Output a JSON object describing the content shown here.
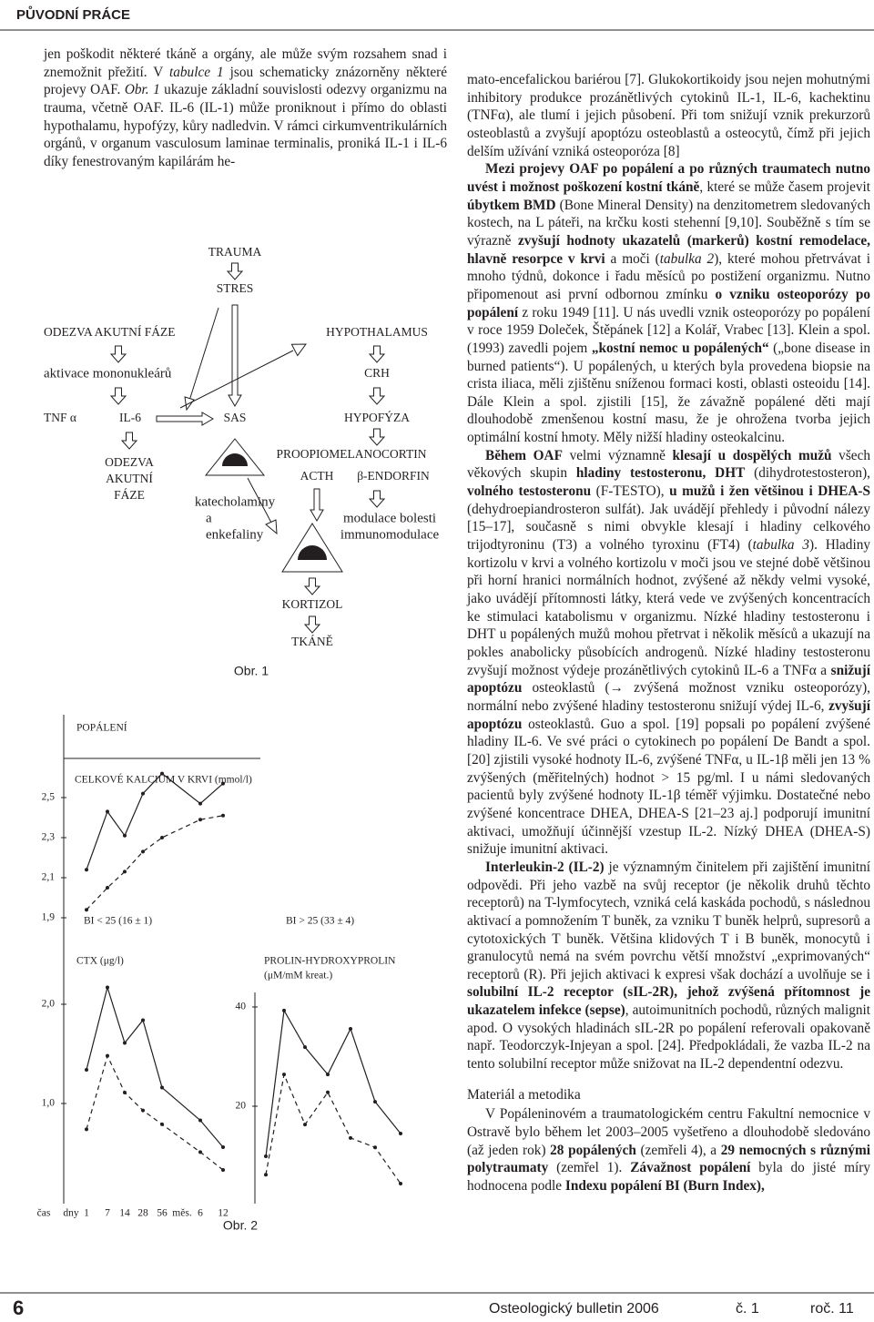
{
  "header": {
    "section": "PŮVODNÍ PRÁCE"
  },
  "left_column": {
    "paragraphs": [
      [
        "jen poškodit některé tkáně a orgány, ale může svým rozsahem snad i znemožnit přežití. V ",
        {
          "italic": "tabulce 1"
        },
        " jsou schematicky znázorněny některé projevy OAF. ",
        {
          "italic": "Obr. 1"
        },
        " ukazuje základní souvislosti odezvy organizmu na trauma, včetně OAF. IL-6 (IL-1) může proniknout i přímo do oblasti hypothalamu, hypofýzy, kůry nadledvin. V rámci cirkumventrikulárních orgánů, v organum vasculosum laminae terminalis, proniká IL-1 i IL-6 díky fenestrovaným kapilárám he-"
      ]
    ]
  },
  "figure1": {
    "caption": "Obr. 1",
    "labels": [
      "TRAUMA",
      "STRES",
      "ODEZVA AKUTNÍ FÁZE",
      "HYPOTHALAMUS",
      "aktivace mononukleárů",
      "CRH",
      "TNF α",
      "IL-6",
      "SAS",
      "HYPOFÝZA",
      "ODEZVA",
      "AKUTNÍ",
      "FÁZE",
      "PROOPIOMELANOCORTIN",
      "ACTH",
      "β-ENDORFIN",
      "katecholaminy",
      "a",
      "enkefaliny",
      "modulace bolesti",
      "immunomodulace",
      "KORTIZOL",
      "TKÁNĚ"
    ]
  },
  "figure2": {
    "caption": "Obr. 2",
    "top_label": "POPÁLENÍ",
    "x_axis": {
      "title": "čas",
      "day_unit": "dny",
      "month_unit": "měs.",
      "categories": [
        "1",
        "7",
        "14",
        "28",
        "56",
        "6",
        "12"
      ]
    },
    "panels": [
      {
        "type": "line",
        "title": "CELKOVÉ KALCIUM V KRVI (mmol/l)",
        "ylim": [
          1.9,
          2.62
        ],
        "yticks": [
          {
            "value": 2.5,
            "label": "2,5"
          },
          {
            "value": 2.3,
            "label": "2,3"
          },
          {
            "value": 2.1,
            "label": "2,1"
          },
          {
            "value": 1.9,
            "label": "1,9"
          }
        ],
        "series": [
          {
            "name": "BI < 25 (16 ± 1)",
            "color": "#231f20",
            "style": "solid",
            "values": [
              2.14,
              2.43,
              2.31,
              2.52,
              2.62,
              2.47,
              2.57
            ]
          },
          {
            "name": "BI > 25 (33 ± 4)",
            "color": "#231f20",
            "style": "dashed",
            "values": [
              1.94,
              2.05,
              2.13,
              2.23,
              2.3,
              2.39,
              2.41
            ]
          }
        ]
      },
      {
        "type": "line",
        "title": "CTX (μg/l)",
        "ylim": [
          0,
          2.4
        ],
        "yticks": [
          {
            "value": 2,
            "label": "2,0"
          },
          {
            "value": 1,
            "label": "1,0"
          }
        ],
        "series": [
          {
            "color": "#231f20",
            "style": "solid",
            "values": [
              1.34,
              2.17,
              1.61,
              1.84,
              1.16,
              0.83,
              0.56
            ]
          },
          {
            "color": "#231f20",
            "style": "dashed",
            "values": [
              0.74,
              1.48,
              1.11,
              0.93,
              0.79,
              0.51,
              0.33
            ]
          }
        ]
      },
      {
        "type": "line",
        "title": "PROLIN-HYDROXYPROLIN",
        "subtitle": "(μM/mM kreat.)",
        "ylim": [
          0,
          50
        ],
        "yticks": [
          40,
          20
        ],
        "series": [
          {
            "color": "#231f20",
            "style": "solid",
            "values": [
              9.9,
              39.3,
              31.9,
              26.4,
              35.6,
              20.9,
              14.5
            ]
          },
          {
            "color": "#231f20",
            "style": "dashed",
            "values": [
              6.2,
              26.4,
              16.3,
              22.8,
              13.6,
              11.7,
              4.4
            ]
          }
        ]
      }
    ]
  },
  "right_column": {
    "paragraphs": [
      [
        "mato-encefalickou bariérou [7]. Glukokortikoidy jsou nejen mohutnými inhibitory produkce prozánětlivých cytokinů IL-1, IL-6, kachektinu (TNFα), ale tlumí i jejich působení. Při tom snižují vznik prekurzorů osteoblastů a zvyšují apoptózu osteoblastů a osteocytů, čímž při jejich delším užívání vzniká osteoporóza [8]"
      ],
      [
        {
          "bold": "Mezi projevy OAF po popálení a po různých traumatech nutno uvést i možnost poškození kostní tkáně"
        },
        ", které se může časem projevit ",
        {
          "bold": "úbytkem BMD"
        },
        " (Bone Mineral Density) na denzitometrem sledovaných kostech, na L páteři, na krčku kosti stehenní [9,10]. Souběžně s tím se výrazně ",
        {
          "bold": "zvyšují hodnoty ukazatelů (markerů) kostní remodelace, hlavně resorpce v krvi"
        },
        " a moči (",
        {
          "italic": "tabulka 2"
        },
        "), které mohou přetrvávat i mnoho týdnů, dokonce i řadu měsíců po postižení organizmu. Nutno připomenout asi první odbornou zmínku ",
        {
          "bold": "o vzniku osteoporózy po popálení"
        },
        " z roku 1949 [11]. U nás uvedli vznik osteoporózy po popálení v roce 1959 Doleček, Štěpánek [12] a Kolář, Vrabec [13]. Klein a spol. (1993) zavedli pojem ",
        {
          "bold": "„kostní nemoc u popálených“"
        },
        " („bone disease in burned patients“). U popálených, u kterých byla provedena biopsie na crista iliaca, měli zjištěnu sníženou formaci kosti, oblasti osteoidu [14]. Dále Klein a spol. zjistili [15], že závažně popálené děti mají dlouhodobě zmenšenou kostní masu, že je ohrožena tvorba jejich optimální kostní hmoty. Měly nižší hladiny osteokalcinu."
      ],
      [
        {
          "bold": "Během OAF"
        },
        " velmi významně ",
        {
          "bold": "klesají u dospělých mužů"
        },
        " všech věkových skupin ",
        {
          "bold": "hladiny testosteronu, DHT"
        },
        " (dihydrotestosteron), ",
        {
          "bold": "volného testosteronu"
        },
        " (F-TESTO), ",
        {
          "bold": "u mužů i žen většinou i DHEA-S"
        },
        " (dehydroepiandrosteron sulfát). Jak uvádějí přehledy i původní nálezy [15–17], současně s nimi obvykle klesají i hladiny celkového trijodtyroninu (T3) a volného tyroxinu (FT4) (",
        {
          "italic": "tabulka 3"
        },
        "). Hladiny kortizolu v krvi a volného kortizolu v moči jsou ve stejné době většinou při horní hranici normálních hodnot, zvýšené až někdy velmi vysoké, jako uvádějí přítomnosti látky, která vede ve zvýšených koncentracích ke stimulaci katabolismu v organizmu. Nízké hladiny testosteronu i DHT u popálených mužů mohou přetrvat i několik měsíců a ukazují na pokles anabolicky působících androgenů. Nízké hladiny testosteronu zvyšují možnost výdeje prozánětlivých cytokinů IL-6 a TNFα a ",
        {
          "bold": "snižují apoptózu"
        },
        " osteoklastů (→ zvýšená možnost vzniku osteoporózy), normální nebo zvýšené hladiny testosteronu snižují výdej IL-6, ",
        {
          "bold": "zvyšují apoptózu"
        },
        " osteoklastů. Guo a spol. [19] popsali po popálení zvýšené hladiny IL-6. Ve své práci o cytokinech po popálení De Bandt a spol. [20] zjistili vysoké hodnoty IL-6, zvýšené TNFα, u IL-1β měli jen 13 % zvýšených (měřitelných) hodnot > 15 pg/ml. I u námi sledovaných pacientů byly zvýšené hodnoty IL-1β téměř výjimku. Dostatečné nebo zvýšené koncentrace DHEA, DHEA-S [21–23 aj.] podporují imunitní aktivaci, umožňují účinnější vzestup IL-2. Nízký DHEA (DHEA-S) snižuje imunitní aktivaci."
      ],
      [
        {
          "bold": "Interleukin-2 (IL-2)"
        },
        " je významným činitelem při zajištění imunitní odpovědi. Při jeho vazbě na svůj receptor (je několik druhů těchto receptorů) na T-lymfocytech, vzniká celá kaskáda pochodů, s následnou aktivací a pomnožením T buněk, za vzniku T buněk helprů, supresorů a cytotoxických T buněk. Většina klidových T i B buněk, monocytů i granulocytů nemá na svém povrchu větší množství „exprimovaných“ receptorů (R). Při jejich aktivaci k expresi však dochází a uvolňuje se i ",
        {
          "bold": "solubilní IL-2 receptor (sIL-2R), jehož zvýšená přítomnost je ukazatelem infekce (sepse)"
        },
        ", autoimunitních pochodů, různých malignit apod. O vysokých hladinách sIL-2R po popálení referovali opakovaně např. Teodorczyk-Injeyan a spol. [24]. Předpokládali, že vazba IL-2 na tento solubilní receptor může snižovat na IL-2 dependentní odezvu."
      ]
    ],
    "heading": "Materiál a metodika",
    "paragraphs_after": [
      [
        "V Popáleninovém a traumatologickém centru Fakultní nemocnice v Ostravě bylo během let 2003–2005 vyšetřeno a dlouhodobě sledováno (až jeden rok) ",
        {
          "bold": "28 popálených"
        },
        " (zemřeli 4), a ",
        {
          "bold": "29 nemocných s různými polytraumaty"
        },
        " (zemřel 1). ",
        {
          "bold": "Závažnost popálení"
        },
        " byla do jisté míry hodnocena podle ",
        {
          "bold": "Indexu popálení BI (Burn Index),"
        }
      ]
    ]
  },
  "footer": {
    "page": "6",
    "journal": "Osteologický bulletin 2006",
    "issue": "č. 1",
    "volume": "roč. 11"
  }
}
